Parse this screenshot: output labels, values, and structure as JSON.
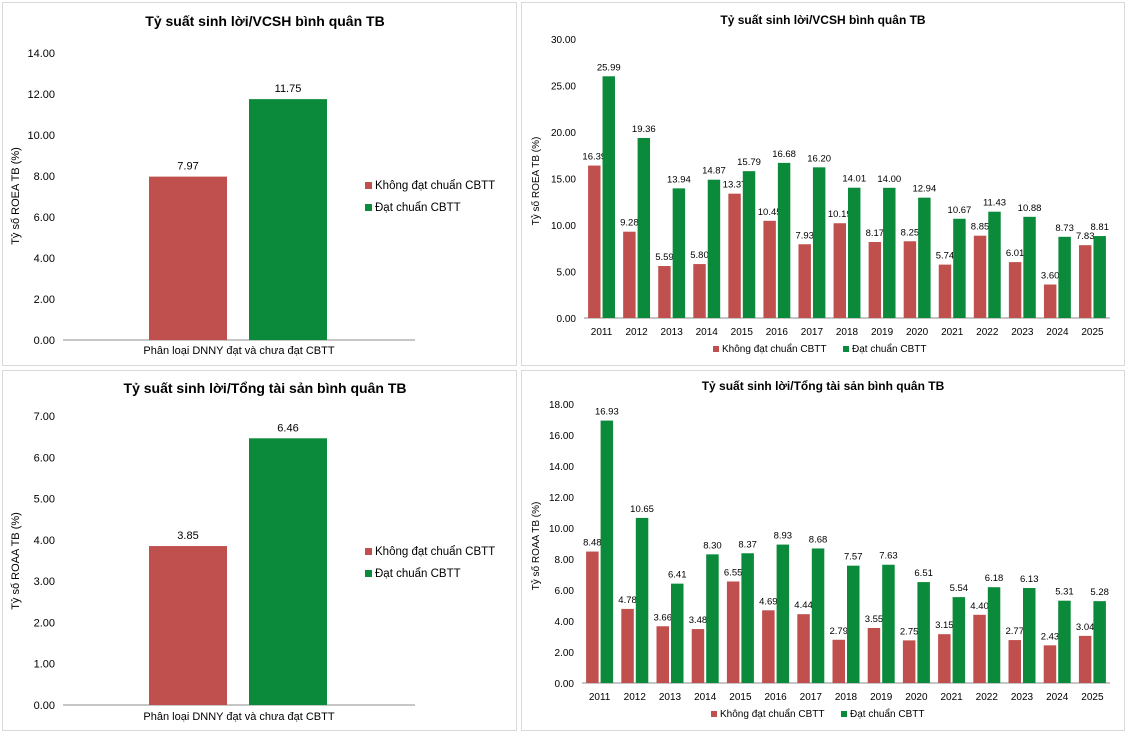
{
  "colors": {
    "not_meeting": "#c0504d",
    "meeting": "#0a8a3a",
    "axis": "#8c8c8c"
  },
  "chart_data": [
    {
      "type": "bar",
      "title": "Tỷ suất sinh lời/VCSH bình quân TB",
      "xlabel": "Phân loại DNNY đạt và chưa đạt CBTT",
      "ylabel": "Tỷ số ROEA TB (%)",
      "ylim": [
        0,
        14
      ],
      "yticks": [
        "0.00",
        "2.00",
        "4.00",
        "6.00",
        "8.00",
        "10.00",
        "12.00",
        "14.00"
      ],
      "legend": "right",
      "series": [
        {
          "name": "Không đạt chuẩn CBTT",
          "values": [
            7.97
          ],
          "labels": [
            "7.97"
          ]
        },
        {
          "name": "Đạt chuẩn CBTT",
          "values": [
            11.75
          ],
          "labels": [
            "11.75"
          ]
        }
      ]
    },
    {
      "type": "bar",
      "title": "Tỷ suất sinh lời/VCSH bình quân TB",
      "ylabel": "Tỷ số ROEA TB (%)",
      "ylim": [
        0,
        30
      ],
      "yticks": [
        "0.00",
        "5.00",
        "10.00",
        "15.00",
        "20.00",
        "25.00",
        "30.00"
      ],
      "legend": "bottom",
      "categories": [
        "2011",
        "2012",
        "2013",
        "2014",
        "2015",
        "2016",
        "2017",
        "2018",
        "2019",
        "2020",
        "2021",
        "2022",
        "2023",
        "2024",
        "2025"
      ],
      "series": [
        {
          "name": "Không đạt chuẩn CBTT",
          "values": [
            16.39,
            9.28,
            5.59,
            5.8,
            13.37,
            10.45,
            7.93,
            10.19,
            8.17,
            8.25,
            5.74,
            8.85,
            6.01,
            3.6,
            7.83
          ],
          "labels": [
            "16.39",
            "9.28",
            "5.59",
            "5.80",
            "13.37",
            "10.45",
            "7.93",
            "10.19",
            "8.17",
            "8.25",
            "5.74",
            "8.85",
            "6.01",
            "3.60",
            "7.83"
          ]
        },
        {
          "name": "Đạt chuẩn CBTT",
          "values": [
            25.99,
            19.36,
            13.94,
            14.87,
            15.79,
            16.68,
            16.2,
            14.01,
            14.0,
            12.94,
            10.67,
            11.43,
            10.88,
            8.73,
            8.81
          ],
          "labels": [
            "25.99",
            "19.36",
            "13.94",
            "14.87",
            "15.79",
            "16.68",
            "16.20",
            "14.01",
            "14.00",
            "12.94",
            "10.67",
            "11.43",
            "10.88",
            "8.73",
            "8.81"
          ]
        }
      ]
    },
    {
      "type": "bar",
      "title": "Tỷ suất sinh lời/Tổng tài sản bình quân TB",
      "xlabel": "Phân loại DNNY đạt và chưa đạt CBTT",
      "ylabel": "Tỷ số ROAA TB (%)",
      "ylim": [
        0,
        7
      ],
      "yticks": [
        "0.00",
        "1.00",
        "2.00",
        "3.00",
        "4.00",
        "5.00",
        "6.00",
        "7.00"
      ],
      "legend": "right",
      "series": [
        {
          "name": "Không đạt chuẩn CBTT",
          "values": [
            3.85
          ],
          "labels": [
            "3.85"
          ]
        },
        {
          "name": "Đạt chuẩn CBTT",
          "values": [
            6.46
          ],
          "labels": [
            "6.46"
          ]
        }
      ]
    },
    {
      "type": "bar",
      "title": "Tỷ suất sinh lời/Tổng tài sản bình quân TB",
      "ylabel": "Tỷ số ROAA TB (%)",
      "ylim": [
        0,
        18
      ],
      "yticks": [
        "0.00",
        "2.00",
        "4.00",
        "6.00",
        "8.00",
        "10.00",
        "12.00",
        "14.00",
        "16.00",
        "18.00"
      ],
      "legend": "bottom",
      "categories": [
        "2011",
        "2012",
        "2013",
        "2014",
        "2015",
        "2016",
        "2017",
        "2018",
        "2019",
        "2020",
        "2021",
        "2022",
        "2023",
        "2024",
        "2025"
      ],
      "series": [
        {
          "name": "Không đạt chuẩn CBTT",
          "values": [
            8.48,
            4.78,
            3.66,
            3.48,
            6.55,
            4.69,
            4.44,
            2.79,
            3.55,
            2.75,
            3.15,
            4.4,
            2.77,
            2.43,
            3.04
          ],
          "labels": [
            "8.48",
            "4.78",
            "3.66",
            "3.48",
            "6.55",
            "4.69",
            "4.44",
            "2.79",
            "3.55",
            "2.75",
            "3.15",
            "4.40",
            "2.77",
            "2.43",
            "3.04"
          ]
        },
        {
          "name": "Đạt chuẩn CBTT",
          "values": [
            16.93,
            10.65,
            6.41,
            8.3,
            8.37,
            8.93,
            8.68,
            7.57,
            7.63,
            6.51,
            5.54,
            6.18,
            6.13,
            5.31,
            5.28
          ],
          "labels": [
            "16.93",
            "10.65",
            "6.41",
            "8.30",
            "8.37",
            "8.93",
            "8.68",
            "7.57",
            "7.63",
            "6.51",
            "5.54",
            "6.18",
            "6.13",
            "5.31",
            "5.28"
          ]
        }
      ]
    }
  ]
}
